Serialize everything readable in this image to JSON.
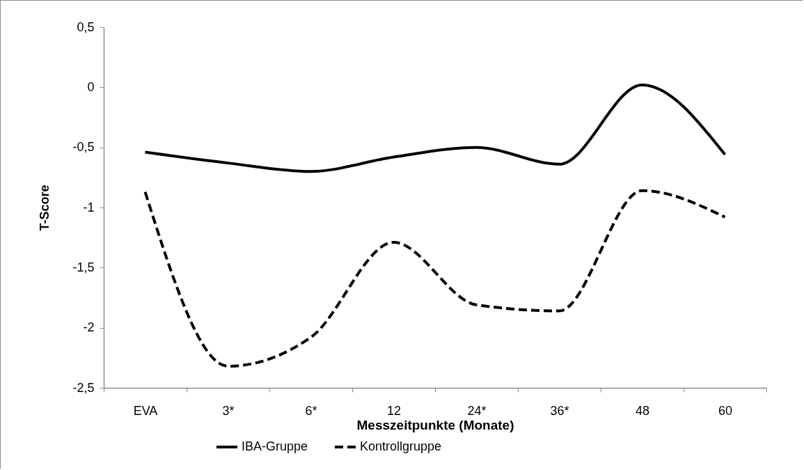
{
  "chart_data": {
    "type": "line",
    "xlabel": "Messzeitpunkte (Monate)",
    "ylabel": "T-Score",
    "categories": [
      "EVA",
      "3*",
      "6*",
      "12",
      "24*",
      "36*",
      "48",
      "60"
    ],
    "series": [
      {
        "name": "IBA-Gruppe",
        "color": "#000000",
        "line_style": "solid",
        "values": [
          -0.54,
          -0.63,
          -0.7,
          -0.58,
          -0.5,
          -0.64,
          0.02,
          -0.56
        ]
      },
      {
        "name": "Kontrollgruppe",
        "color": "#000000",
        "line_style": "dashed",
        "values": [
          -0.87,
          -2.32,
          -2.08,
          -1.29,
          -1.81,
          -1.86,
          -0.86,
          -1.08
        ]
      }
    ],
    "ylim": [
      -2.5,
      0.5
    ],
    "yticks": [
      {
        "value": 0.5,
        "label": "0,5"
      },
      0,
      {
        "value": -0.5,
        "label": "-0,5"
      },
      -1,
      {
        "value": -1.5,
        "label": "-1,5"
      },
      -2,
      {
        "value": -2.5,
        "label": "-2,5"
      }
    ],
    "grid": false,
    "legend": "bottom",
    "marker": "none"
  }
}
